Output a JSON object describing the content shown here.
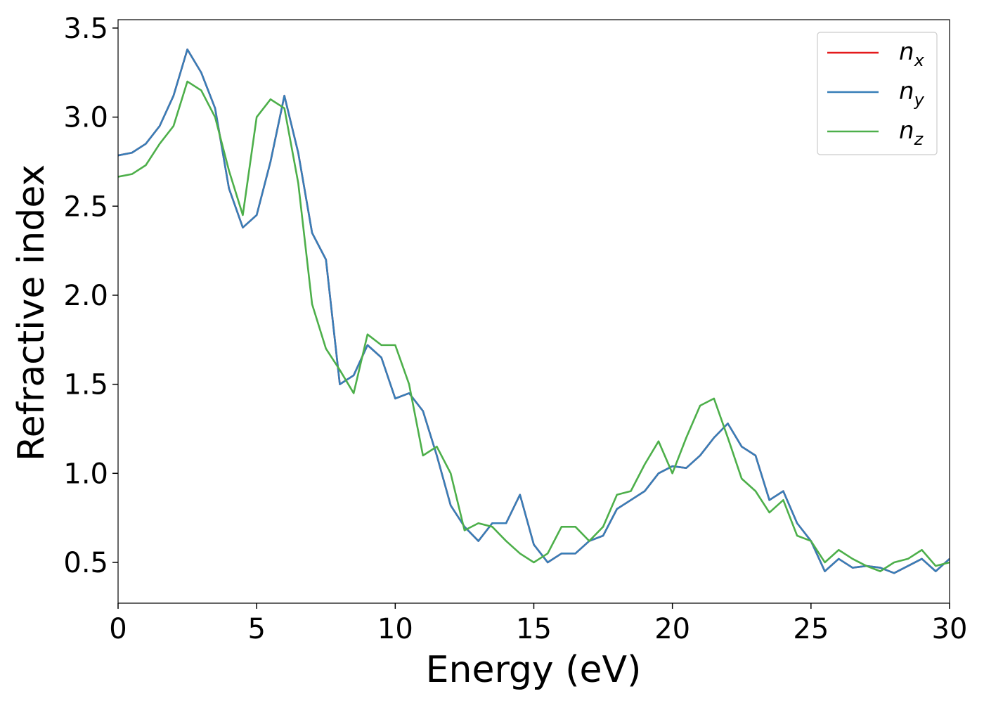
{
  "chart_data": {
    "type": "line",
    "x_label": "Energy (eV)",
    "y_label": "Refractive index",
    "x": [
      0,
      0.5,
      1,
      1.5,
      2,
      2.5,
      3,
      3.5,
      4,
      4.5,
      5,
      5.5,
      6,
      6.5,
      7,
      7.5,
      8,
      8.5,
      9,
      9.5,
      10,
      10.5,
      11,
      11.5,
      12,
      12.5,
      13,
      13.5,
      14,
      14.5,
      15,
      15.5,
      16,
      16.5,
      17,
      17.5,
      18,
      18.5,
      19,
      19.5,
      20,
      20.5,
      21,
      21.5,
      22,
      22.5,
      23,
      23.5,
      24,
      24.5,
      25,
      25.5,
      26,
      26.5,
      27,
      27.5,
      28,
      28.5,
      29,
      29.5,
      30
    ],
    "series": [
      {
        "name": "n_x",
        "color": "#e41a1c",
        "values": [
          2.785,
          2.8,
          2.85,
          2.95,
          3.12,
          3.38,
          3.25,
          3.05,
          2.6,
          2.38,
          2.45,
          2.75,
          3.12,
          2.8,
          2.35,
          2.2,
          1.5,
          1.55,
          1.72,
          1.65,
          1.42,
          1.45,
          1.35,
          1.1,
          0.82,
          0.7,
          0.62,
          0.72,
          0.72,
          0.88,
          0.6,
          0.5,
          0.55,
          0.55,
          0.62,
          0.65,
          0.8,
          0.85,
          0.9,
          1.0,
          1.04,
          1.03,
          1.1,
          1.2,
          1.28,
          1.15,
          1.1,
          0.85,
          0.9,
          0.72,
          0.62,
          0.45,
          0.52,
          0.47,
          0.48,
          0.47,
          0.44,
          0.48,
          0.52,
          0.45,
          0.52
        ]
      },
      {
        "name": "n_y",
        "color": "#377eb8",
        "values": [
          2.785,
          2.8,
          2.85,
          2.95,
          3.12,
          3.38,
          3.25,
          3.05,
          2.6,
          2.38,
          2.45,
          2.75,
          3.12,
          2.8,
          2.35,
          2.2,
          1.5,
          1.55,
          1.72,
          1.65,
          1.42,
          1.45,
          1.35,
          1.1,
          0.82,
          0.7,
          0.62,
          0.72,
          0.72,
          0.88,
          0.6,
          0.5,
          0.55,
          0.55,
          0.62,
          0.65,
          0.8,
          0.85,
          0.9,
          1.0,
          1.04,
          1.03,
          1.1,
          1.2,
          1.28,
          1.15,
          1.1,
          0.85,
          0.9,
          0.72,
          0.62,
          0.45,
          0.52,
          0.47,
          0.48,
          0.47,
          0.44,
          0.48,
          0.52,
          0.45,
          0.52
        ]
      },
      {
        "name": "n_z",
        "color": "#4daf4a",
        "values": [
          2.665,
          2.68,
          2.73,
          2.85,
          2.95,
          3.2,
          3.15,
          3.0,
          2.7,
          2.45,
          3.0,
          3.1,
          3.05,
          2.63,
          1.95,
          1.7,
          1.58,
          1.45,
          1.78,
          1.72,
          1.72,
          1.5,
          1.1,
          1.15,
          1.0,
          0.68,
          0.72,
          0.7,
          0.62,
          0.55,
          0.5,
          0.55,
          0.7,
          0.7,
          0.62,
          0.7,
          0.88,
          0.9,
          1.05,
          1.18,
          1.0,
          1.2,
          1.38,
          1.42,
          1.2,
          0.97,
          0.9,
          0.78,
          0.85,
          0.65,
          0.62,
          0.5,
          0.57,
          0.52,
          0.48,
          0.45,
          0.5,
          0.52,
          0.57,
          0.48,
          0.5
        ]
      }
    ],
    "xlim": [
      0,
      30
    ],
    "ylim": [
      0.271,
      3.547
    ],
    "xticks": [
      0,
      5,
      10,
      15,
      20,
      25,
      30
    ],
    "yticks": [
      0.5,
      {
        "value": 1,
        "label": "1.0"
      },
      1.5,
      {
        "value": 2,
        "label": "2.0"
      },
      2.5,
      {
        "value": 3,
        "label": "3.0"
      },
      3.5
    ],
    "grid": false,
    "legend": "upper right"
  }
}
